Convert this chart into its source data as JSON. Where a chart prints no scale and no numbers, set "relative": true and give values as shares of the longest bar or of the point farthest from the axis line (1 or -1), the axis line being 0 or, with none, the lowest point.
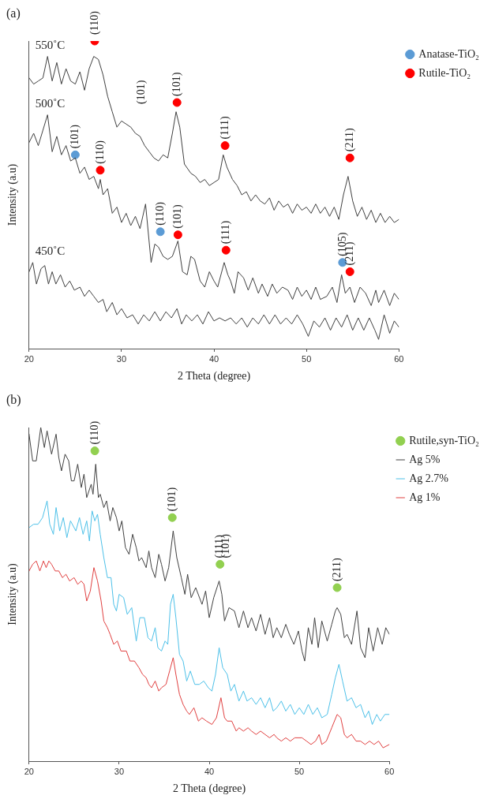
{
  "chart_data": [
    {
      "type": "line",
      "title": "(a)",
      "xlabel": "2 Theta (degree)",
      "ylabel": "Intensity (a.u)",
      "relative": true,
      "xlim": [
        20,
        60
      ],
      "xticks": [
        20,
        30,
        40,
        50,
        60
      ],
      "grid": false,
      "legend": "top right",
      "tick_labels": "x",
      "series": [
        {
          "type": "line",
          "name": "550˚C",
          "color": "#404040",
          "x": [
            20,
            20.5,
            21,
            21.5,
            22,
            22.5,
            23,
            23.5,
            24,
            24.5,
            25,
            25.5,
            26,
            26.5,
            27,
            27.5,
            28,
            28.5,
            29,
            29.5,
            30,
            30.5,
            31,
            31.5,
            32,
            32.5,
            33,
            33.5,
            34,
            34.5,
            35,
            35.5,
            35.9,
            36.3,
            36.8,
            37.5,
            38,
            38.5,
            39,
            39.5,
            40,
            40.5,
            41,
            41.4,
            42,
            42.5,
            43,
            43.5,
            44,
            44.5,
            45,
            45.5,
            46,
            46.5,
            47,
            47.5,
            48,
            48.5,
            49,
            49.5,
            50,
            50.5,
            51,
            51.5,
            52,
            52.5,
            53,
            53.5,
            54,
            54.5,
            55,
            55.5,
            56,
            56.5,
            57,
            57.5,
            58,
            58.5,
            59,
            59.5,
            60
          ],
          "values": [
            0.88,
            0.86,
            0.87,
            0.88,
            0.95,
            0.87,
            0.93,
            0.86,
            0.91,
            0.87,
            0.86,
            0.9,
            0.84,
            0.91,
            0.95,
            0.94,
            0.89,
            0.82,
            0.77,
            0.72,
            0.74,
            0.73,
            0.72,
            0.7,
            0.69,
            0.66,
            0.64,
            0.62,
            0.61,
            0.63,
            0.62,
            0.7,
            0.77,
            0.72,
            0.6,
            0.57,
            0.56,
            0.54,
            0.55,
            0.53,
            0.54,
            0.55,
            0.63,
            0.59,
            0.55,
            0.53,
            0.5,
            0.51,
            0.48,
            0.5,
            0.48,
            0.47,
            0.49,
            0.45,
            0.48,
            0.46,
            0.47,
            0.44,
            0.47,
            0.45,
            0.46,
            0.44,
            0.47,
            0.44,
            0.46,
            0.43,
            0.46,
            0.42,
            0.5,
            0.56,
            0.48,
            0.43,
            0.46,
            0.42,
            0.45,
            0.41,
            0.44,
            0.41,
            0.43,
            0.41,
            0.42
          ]
        },
        {
          "type": "line",
          "name": "500˚C",
          "color": "#404040",
          "x": [
            20,
            20.5,
            21,
            21.5,
            22,
            22.5,
            23,
            23.5,
            24,
            24.5,
            25,
            25.5,
            26,
            26.5,
            27,
            27.5,
            27.7,
            28,
            28.5,
            29,
            29.5,
            30,
            30.5,
            31,
            31.5,
            32,
            32.6,
            33.2,
            33.6,
            34,
            34.5,
            35,
            35.5,
            36.1,
            36.6,
            37.1,
            37.5,
            37.9,
            38.5,
            39,
            39.5,
            40,
            40.4,
            41.1,
            41.5,
            41.8,
            42.2,
            42.6,
            43.2,
            43.7,
            44.2,
            44.8,
            45.2,
            45.8,
            46.3,
            46.8,
            47.4,
            48,
            48.5,
            49,
            49.5,
            50,
            50.5,
            51,
            51.5,
            52.2,
            52.8,
            53.3,
            53.8,
            54.2,
            54.7,
            55.2,
            55.8,
            56.4,
            57,
            57.5,
            57.8,
            58.4,
            59,
            59.5,
            60
          ],
          "values": [
            0.67,
            0.7,
            0.66,
            0.71,
            0.76,
            0.64,
            0.69,
            0.63,
            0.66,
            0.61,
            0.62,
            0.57,
            0.59,
            0.55,
            0.56,
            0.52,
            0.55,
            0.5,
            0.52,
            0.44,
            0.46,
            0.41,
            0.44,
            0.4,
            0.43,
            0.39,
            0.47,
            0.28,
            0.34,
            0.33,
            0.3,
            0.29,
            0.3,
            0.35,
            0.25,
            0.24,
            0.3,
            0.29,
            0.22,
            0.2,
            0.25,
            0.22,
            0.2,
            0.28,
            0.24,
            0.22,
            0.18,
            0.25,
            0.23,
            0.19,
            0.23,
            0.18,
            0.21,
            0.17,
            0.21,
            0.18,
            0.2,
            0.19,
            0.16,
            0.2,
            0.17,
            0.19,
            0.16,
            0.2,
            0.16,
            0.17,
            0.2,
            0.15,
            0.24,
            0.18,
            0.2,
            0.15,
            0.2,
            0.18,
            0.14,
            0.19,
            0.15,
            0.19,
            0.14,
            0.18,
            0.16
          ]
        },
        {
          "type": "line",
          "name": "450˚C",
          "color": "#404040",
          "x": [
            20,
            20.4,
            20.8,
            21.3,
            21.7,
            22.1,
            22.5,
            22.9,
            23.4,
            23.9,
            24.4,
            24.9,
            25.5,
            26,
            26.5,
            27,
            27.5,
            28,
            28.4,
            29,
            29.5,
            30,
            30.6,
            31.2,
            31.8,
            32.4,
            33,
            33.6,
            34.2,
            34.8,
            35.4,
            36,
            36.5,
            37,
            37.6,
            38.2,
            38.8,
            39.4,
            40,
            40.6,
            41.2,
            41.8,
            42.4,
            43,
            43.6,
            44.2,
            44.8,
            45.4,
            46,
            46.6,
            47.2,
            47.8,
            48.4,
            49,
            49.6,
            50.2,
            50.8,
            51.4,
            52,
            52.6,
            53.2,
            53.8,
            54.4,
            55,
            55.6,
            56.2,
            56.8,
            57.4,
            57.8,
            58.4,
            59,
            59.5,
            60
          ],
          "values": [
            0.25,
            0.28,
            0.21,
            0.26,
            0.27,
            0.21,
            0.25,
            0.21,
            0.24,
            0.2,
            0.22,
            0.19,
            0.2,
            0.17,
            0.19,
            0.17,
            0.15,
            0.16,
            0.12,
            0.15,
            0.11,
            0.13,
            0.1,
            0.11,
            0.08,
            0.11,
            0.09,
            0.12,
            0.09,
            0.12,
            0.1,
            0.13,
            0.08,
            0.11,
            0.09,
            0.11,
            0.08,
            0.12,
            0.09,
            0.1,
            0.09,
            0.1,
            0.08,
            0.1,
            0.07,
            0.1,
            0.08,
            0.11,
            0.08,
            0.11,
            0.08,
            0.1,
            0.08,
            0.11,
            0.08,
            0.04,
            0.09,
            0.07,
            0.1,
            0.06,
            0.1,
            0.07,
            0.11,
            0.06,
            0.1,
            0.06,
            0.1,
            0.06,
            0.03,
            0.11,
            0.05,
            0.09,
            0.07
          ]
        },
        {
          "type": "scatter",
          "marker": "circle",
          "name": "Anatase-TiO₂",
          "color": "#5b9bd5",
          "x": [
            25,
            34.2,
            53.9
          ],
          "values": [
            0.63,
            0.38,
            0.28
          ]
        },
        {
          "type": "scatter",
          "marker": "circle",
          "name": "Rutile-TiO₂",
          "color": "#ff0000",
          "x": [
            27.1,
            27.7,
            36,
            41.2,
            54.7,
            36.1,
            41.3,
            54.7
          ],
          "values": [
            1.0,
            0.58,
            0.8,
            0.66,
            0.62,
            0.37,
            0.32,
            0.25
          ]
        }
      ],
      "annotations": [
        {
          "text": "(110)",
          "x": 27.1,
          "y": 1.0
        },
        "(101)",
        {
          "text": "(101)",
          "x": 36,
          "y": 0.8
        },
        {
          "text": "(111)",
          "x": 41.2,
          "y": 0.66
        },
        {
          "text": "(211)",
          "x": 54.7,
          "y": 0.62
        },
        {
          "text": "(101)",
          "x": 25,
          "y": 0.63
        },
        {
          "text": "(110)",
          "x": 27.7,
          "y": 0.58
        },
        {
          "text": "(110)",
          "x": 34.2,
          "y": 0.38
        },
        {
          "text": "(101)",
          "x": 36.1,
          "y": 0.37
        },
        {
          "text": "(111)",
          "x": 41.3,
          "y": 0.32
        },
        {
          "text": "(105)",
          "x": 53.9,
          "y": 0.28
        },
        {
          "text": "(211)",
          "x": 54.7,
          "y": 0.25
        }
      ]
    },
    {
      "type": "line",
      "title": "(b)",
      "xlabel": "2 Theta (degree)",
      "ylabel": "Intensity (a.u)",
      "relative": true,
      "xlim": [
        20,
        60
      ],
      "xticks": [
        20,
        30,
        40,
        50,
        60
      ],
      "grid": false,
      "legend": "top right",
      "tick_labels": "x",
      "series": [
        {
          "type": "scatter",
          "marker": "circle",
          "name": "Rutile,syn-TiO₂",
          "color": "#92d050",
          "x": [
            27.3,
            35.9,
            41.2,
            54.2
          ],
          "values": [
            0.93,
            0.73,
            0.59,
            0.52
          ]
        },
        {
          "type": "line",
          "name": "Ag 5%",
          "color": "#404040",
          "x": [
            20,
            20.4,
            20.8,
            21.3,
            21.7,
            22,
            22.5,
            23,
            23.3,
            23.6,
            24,
            24.4,
            24.7,
            25,
            25.4,
            25.8,
            26.1,
            26.4,
            26.9,
            27.1,
            27.4,
            27.7,
            27.9,
            28.3,
            28.6,
            29,
            29.3,
            29.7,
            30,
            30.3,
            30.7,
            31.1,
            31.5,
            31.9,
            32.2,
            32.5,
            33,
            33.3,
            33.6,
            34,
            34.4,
            34.7,
            35.1,
            35.5,
            36,
            36.4,
            36.9,
            37.3,
            37.6,
            38,
            38.5,
            39.2,
            39.6,
            40,
            40.5,
            41.1,
            41.4,
            41.7,
            42.2,
            42.8,
            43.3,
            43.8,
            44.3,
            44.7,
            45.2,
            45.7,
            46.2,
            46.7,
            47.1,
            47.5,
            48,
            48.5,
            48.9,
            49.4,
            49.9,
            50.3,
            50.6,
            51,
            51.4,
            51.7,
            52.1,
            52.5,
            53.1,
            53.6,
            54,
            54.2,
            54.6,
            55,
            55.3,
            55.8,
            56.4,
            56.8,
            57.3,
            57.7,
            58.2,
            58.7,
            59.2,
            59.6,
            60
          ],
          "values": [
            0.98,
            0.9,
            0.9,
            1.0,
            0.94,
            0.99,
            0.92,
            0.98,
            0.91,
            0.87,
            0.92,
            0.9,
            0.84,
            0.84,
            0.89,
            0.82,
            0.86,
            0.79,
            0.83,
            0.8,
            0.89,
            0.79,
            0.8,
            0.76,
            0.78,
            0.72,
            0.76,
            0.73,
            0.69,
            0.72,
            0.64,
            0.62,
            0.68,
            0.64,
            0.6,
            0.61,
            0.58,
            0.63,
            0.58,
            0.55,
            0.62,
            0.59,
            0.54,
            0.58,
            0.69,
            0.61,
            0.55,
            0.5,
            0.56,
            0.49,
            0.52,
            0.47,
            0.51,
            0.43,
            0.49,
            0.54,
            0.5,
            0.42,
            0.46,
            0.45,
            0.4,
            0.45,
            0.4,
            0.43,
            0.39,
            0.44,
            0.38,
            0.43,
            0.37,
            0.4,
            0.37,
            0.41,
            0.38,
            0.35,
            0.39,
            0.33,
            0.3,
            0.4,
            0.35,
            0.43,
            0.34,
            0.42,
            0.36,
            0.41,
            0.45,
            0.46,
            0.44,
            0.37,
            0.38,
            0.35,
            0.45,
            0.34,
            0.31,
            0.4,
            0.33,
            0.4,
            0.35,
            0.4,
            0.38
          ]
        },
        {
          "type": "line",
          "name": "Ag 2.7%",
          "color": "#4dc0e8",
          "x": [
            20,
            20.5,
            21,
            21.5,
            22,
            22.3,
            22.7,
            23,
            23.4,
            23.8,
            24.2,
            24.6,
            25.2,
            25.6,
            26,
            26.4,
            26.7,
            27,
            27.3,
            27.6,
            27.9,
            28.3,
            28.7,
            29.1,
            29.4,
            29.7,
            30,
            30.5,
            30.9,
            31.4,
            31.9,
            32.3,
            32.8,
            33.2,
            33.6,
            34,
            34.3,
            34.7,
            35.1,
            35.4,
            35.7,
            36,
            36.3,
            36.7,
            37.1,
            37.5,
            37.9,
            38.4,
            38.9,
            39.4,
            39.9,
            40.3,
            40.7,
            41.1,
            41.5,
            42,
            42.4,
            42.8,
            43.3,
            43.8,
            44.2,
            44.7,
            45.2,
            45.7,
            46.2,
            46.7,
            47.1,
            47.5,
            48,
            48.5,
            49,
            49.5,
            50,
            50.5,
            51,
            51.5,
            52,
            52.5,
            53.1,
            53.6,
            54,
            54.4,
            54.8,
            55.3,
            55.8,
            56.3,
            56.8,
            57.3,
            57.7,
            58.1,
            58.6,
            59,
            59.5,
            60
          ],
          "values": [
            0.7,
            0.71,
            0.71,
            0.73,
            0.78,
            0.71,
            0.68,
            0.76,
            0.69,
            0.73,
            0.67,
            0.72,
            0.69,
            0.73,
            0.68,
            0.72,
            0.66,
            0.75,
            0.72,
            0.74,
            0.68,
            0.61,
            0.55,
            0.55,
            0.47,
            0.45,
            0.5,
            0.49,
            0.44,
            0.46,
            0.36,
            0.43,
            0.43,
            0.37,
            0.36,
            0.4,
            0.34,
            0.33,
            0.36,
            0.35,
            0.47,
            0.5,
            0.43,
            0.32,
            0.3,
            0.24,
            0.27,
            0.23,
            0.23,
            0.24,
            0.22,
            0.21,
            0.26,
            0.34,
            0.28,
            0.26,
            0.21,
            0.23,
            0.18,
            0.21,
            0.18,
            0.19,
            0.17,
            0.19,
            0.16,
            0.19,
            0.15,
            0.16,
            0.18,
            0.15,
            0.17,
            0.14,
            0.16,
            0.14,
            0.17,
            0.14,
            0.16,
            0.13,
            0.14,
            0.2,
            0.25,
            0.29,
            0.24,
            0.18,
            0.19,
            0.16,
            0.17,
            0.13,
            0.15,
            0.11,
            0.14,
            0.12,
            0.14,
            0.14
          ]
        },
        {
          "type": "line",
          "name": "Ag 1%",
          "color": "#e04040",
          "x": [
            20,
            20.4,
            20.8,
            21.2,
            21.6,
            21.9,
            22.2,
            22.5,
            22.9,
            23.3,
            23.7,
            24.1,
            24.5,
            25,
            25.4,
            25.8,
            26.1,
            26.4,
            26.8,
            27.2,
            27.6,
            28,
            28.3,
            28.7,
            29,
            29.4,
            29.8,
            30.2,
            30.8,
            31.2,
            31.7,
            32.2,
            32.6,
            33,
            33.3,
            33.6,
            34,
            34.4,
            34.7,
            35.2,
            35.6,
            36,
            36.3,
            36.7,
            37.1,
            37.5,
            37.8,
            38.3,
            38.8,
            39.2,
            39.7,
            40.3,
            40.8,
            41.3,
            41.7,
            42,
            42.5,
            43,
            43.3,
            43.8,
            44.3,
            44.7,
            45.2,
            45.7,
            46.2,
            46.7,
            47.2,
            47.5,
            48,
            48.5,
            49,
            49.5,
            50.3,
            50.8,
            51.3,
            51.8,
            52.2,
            52.5,
            53,
            53.6,
            54.2,
            54.6,
            55,
            55.3,
            55.8,
            56.3,
            56.8,
            57.3,
            57.8,
            58.3,
            58.8,
            59.3,
            60
          ],
          "values": [
            0.57,
            0.59,
            0.6,
            0.57,
            0.6,
            0.58,
            0.6,
            0.59,
            0.57,
            0.57,
            0.55,
            0.56,
            0.54,
            0.55,
            0.53,
            0.54,
            0.53,
            0.48,
            0.51,
            0.58,
            0.54,
            0.48,
            0.42,
            0.4,
            0.38,
            0.35,
            0.36,
            0.33,
            0.33,
            0.3,
            0.3,
            0.28,
            0.26,
            0.25,
            0.23,
            0.22,
            0.24,
            0.21,
            0.22,
            0.23,
            0.27,
            0.31,
            0.26,
            0.2,
            0.17,
            0.15,
            0.14,
            0.16,
            0.12,
            0.13,
            0.12,
            0.11,
            0.13,
            0.19,
            0.13,
            0.12,
            0.12,
            0.09,
            0.1,
            0.09,
            0.1,
            0.09,
            0.08,
            0.09,
            0.08,
            0.07,
            0.08,
            0.07,
            0.06,
            0.07,
            0.06,
            0.07,
            0.07,
            0.06,
            0.05,
            0.06,
            0.08,
            0.05,
            0.06,
            0.1,
            0.14,
            0.13,
            0.08,
            0.07,
            0.08,
            0.06,
            0.06,
            0.05,
            0.06,
            0.05,
            0.06,
            0.04,
            0.05
          ]
        }
      ],
      "annotations": [
        {
          "text": "(110)",
          "x": 27.3,
          "y": 0.93
        },
        {
          "text": "(101)",
          "x": 35.9,
          "y": 0.73
        },
        {
          "text": "(111)",
          "x": 41.2,
          "y": 0.59
        },
        {
          "text": "(101)",
          "x": 41.9,
          "y": 0.59
        },
        {
          "text": "(211)",
          "x": 54.2,
          "y": 0.52
        }
      ]
    }
  ]
}
